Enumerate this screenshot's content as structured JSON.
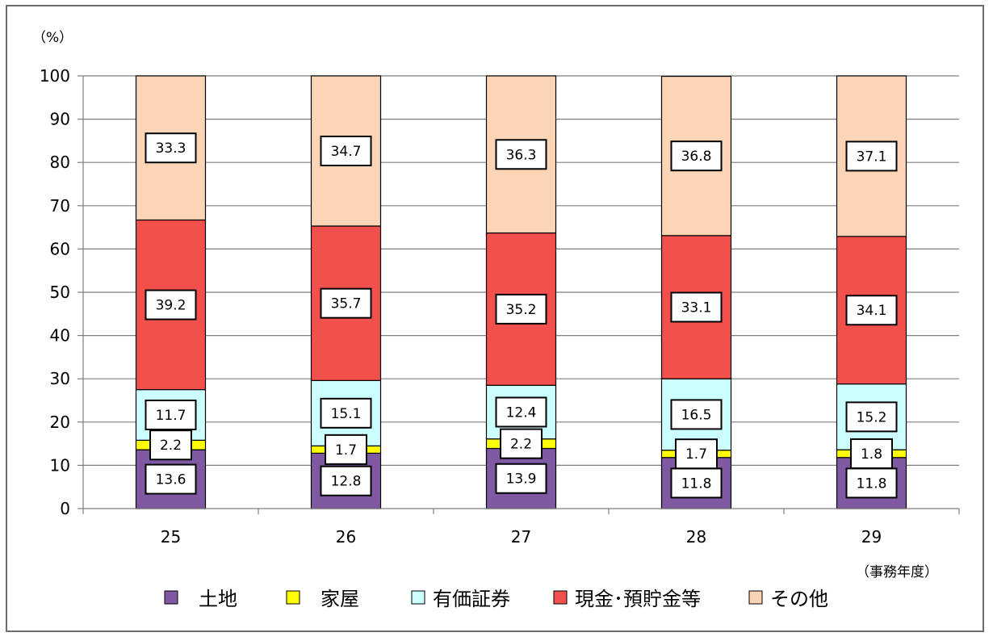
{
  "chart_data": {
    "type": "bar",
    "stacked": true,
    "categories": [
      "25",
      "26",
      "27",
      "28",
      "29"
    ],
    "series": [
      {
        "name": "土地",
        "color": "#7f5aa3",
        "values": [
          13.6,
          12.8,
          13.9,
          11.8,
          11.8
        ]
      },
      {
        "name": "家屋",
        "color": "#ffff00",
        "values": [
          2.2,
          1.7,
          2.2,
          1.7,
          1.8
        ]
      },
      {
        "name": "有価証券",
        "color": "#ccffff",
        "values": [
          11.7,
          15.1,
          12.4,
          16.5,
          15.2
        ]
      },
      {
        "name": "現金･預貯金等",
        "color": "#f2504c",
        "values": [
          39.2,
          35.7,
          35.2,
          33.1,
          34.1
        ]
      },
      {
        "name": "その他",
        "color": "#fbd5b5",
        "values": [
          33.3,
          34.7,
          36.3,
          36.8,
          37.1
        ]
      }
    ],
    "y_unit": "（%）",
    "x_unit": "（事務年度）",
    "ylim": [
      0,
      100
    ],
    "yticks": [
      "0",
      "10",
      "20",
      "30",
      "40",
      "50",
      "60",
      "70",
      "80",
      "90",
      "100"
    ],
    "grid": true,
    "legend_position": "bottom"
  }
}
